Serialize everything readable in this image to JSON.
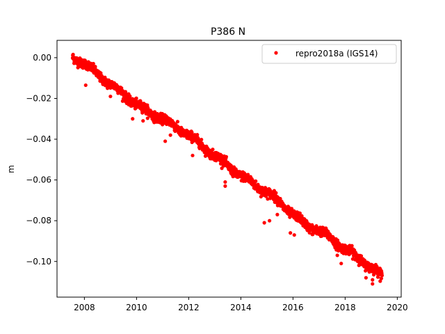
{
  "chart_data": {
    "type": "scatter",
    "title": "P386 N",
    "xlabel": "",
    "ylabel": "m",
    "xlim": [
      2006.95,
      2020.15
    ],
    "ylim": [
      -0.1175,
      0.0085
    ],
    "xticks": [
      2008,
      2010,
      2012,
      2014,
      2016,
      2018,
      2020
    ],
    "yticks": [
      0.0,
      -0.02,
      -0.04,
      -0.06,
      -0.08,
      -0.1
    ],
    "xtick_labels": [
      "2008",
      "2010",
      "2012",
      "2014",
      "2016",
      "2018",
      "2020"
    ],
    "ytick_labels": [
      "0.00",
      "−0.02",
      "−0.04",
      "−0.06",
      "−0.08",
      "−0.10"
    ],
    "grid": false,
    "legend_position": "top-right",
    "series": [
      {
        "name": "repro2018a (IGS14)",
        "color": "#ff0000",
        "marker": "circle",
        "x_range": [
          2007.55,
          2019.42
        ],
        "trend": [
          [
            2007.55,
            0.0005
          ],
          [
            2008.0,
            -0.003
          ],
          [
            2008.5,
            -0.008
          ],
          [
            2009.0,
            -0.013
          ],
          [
            2009.5,
            -0.018
          ],
          [
            2010.0,
            -0.023
          ],
          [
            2010.5,
            -0.027
          ],
          [
            2011.0,
            -0.03
          ],
          [
            2011.5,
            -0.034
          ],
          [
            2012.0,
            -0.038
          ],
          [
            2012.5,
            -0.043
          ],
          [
            2013.0,
            -0.048
          ],
          [
            2013.5,
            -0.053
          ],
          [
            2014.0,
            -0.058
          ],
          [
            2014.5,
            -0.062
          ],
          [
            2015.0,
            -0.066
          ],
          [
            2015.5,
            -0.071
          ],
          [
            2016.0,
            -0.077
          ],
          [
            2016.5,
            -0.082
          ],
          [
            2017.0,
            -0.085
          ],
          [
            2017.5,
            -0.089
          ],
          [
            2018.0,
            -0.094
          ],
          [
            2018.5,
            -0.098
          ],
          [
            2019.0,
            -0.103
          ],
          [
            2019.42,
            -0.107
          ]
        ],
        "outliers": [
          [
            2008.05,
            -0.0135
          ],
          [
            2009.0,
            -0.019
          ],
          [
            2009.85,
            -0.03
          ],
          [
            2010.25,
            -0.031
          ],
          [
            2010.7,
            -0.028
          ],
          [
            2011.1,
            -0.041
          ],
          [
            2011.3,
            -0.038
          ],
          [
            2012.15,
            -0.048
          ],
          [
            2013.4,
            -0.063
          ],
          [
            2013.4,
            -0.061
          ],
          [
            2014.9,
            -0.081
          ],
          [
            2015.1,
            -0.08
          ],
          [
            2015.4,
            -0.077
          ],
          [
            2015.9,
            -0.086
          ],
          [
            2016.05,
            -0.087
          ],
          [
            2017.7,
            -0.097
          ],
          [
            2017.85,
            -0.101
          ],
          [
            2018.8,
            -0.108
          ],
          [
            2019.05,
            -0.111
          ],
          [
            2019.05,
            -0.109
          ]
        ]
      }
    ]
  }
}
